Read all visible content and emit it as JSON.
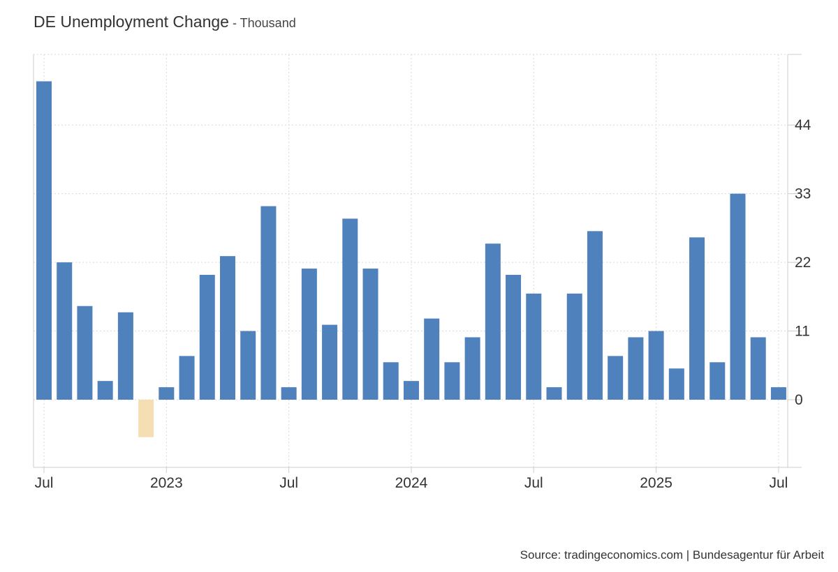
{
  "header": {
    "title": "DE Unemployment Change",
    "separator": " - ",
    "unit": "Thousand"
  },
  "source": "Source: tradingeconomics.com | Bundesagentur für Arbeit",
  "colors": {
    "positive_bar": "#4f81bd",
    "negative_bar": "#f5deb3",
    "grid": "#d9d9d9",
    "axis": "#cccccc"
  },
  "chart_data": {
    "type": "bar",
    "title": "DE Unemployment Change",
    "ylabel": "",
    "xlabel": "",
    "ylim": [
      -11,
      55
    ],
    "yticks": [
      0,
      11,
      22,
      33,
      44
    ],
    "grid": true,
    "y_axis_position": "right",
    "x_tick_labels": [
      {
        "label": "Jul",
        "index": 0
      },
      {
        "label": "2023",
        "index": 6
      },
      {
        "label": "Jul",
        "index": 12
      },
      {
        "label": "2024",
        "index": 18
      },
      {
        "label": "Jul",
        "index": 24
      },
      {
        "label": "2025",
        "index": 30
      },
      {
        "label": "Jul",
        "index": 36
      }
    ],
    "categories": [
      "2022-07",
      "2022-08",
      "2022-09",
      "2022-10",
      "2022-11",
      "2022-12",
      "2023-01",
      "2023-02",
      "2023-03",
      "2023-04",
      "2023-05",
      "2023-06",
      "2023-07",
      "2023-08",
      "2023-09",
      "2023-10",
      "2023-11",
      "2023-12",
      "2024-01",
      "2024-02",
      "2024-03",
      "2024-04",
      "2024-05",
      "2024-06",
      "2024-07",
      "2024-08",
      "2024-09",
      "2024-10",
      "2024-11",
      "2024-12",
      "2025-01",
      "2025-02",
      "2025-03",
      "2025-04",
      "2025-05",
      "2025-06",
      "2025-07"
    ],
    "values": [
      51,
      22,
      15,
      3,
      14,
      -6,
      2,
      7,
      20,
      23,
      11,
      31,
      2,
      21,
      12,
      29,
      21,
      6,
      3,
      13,
      6,
      10,
      25,
      20,
      17,
      2,
      17,
      27,
      7,
      10,
      11,
      5,
      26,
      6,
      33,
      10,
      2
    ]
  }
}
